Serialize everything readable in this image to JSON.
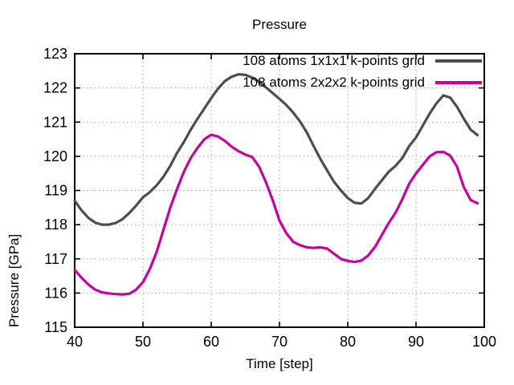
{
  "window": {
    "background": "#ffffff"
  },
  "colors": {
    "axis": "#000000",
    "grid": "#a6a6a6",
    "series1": "#4d4d4d",
    "series2": "#c4009e"
  },
  "chart_data": {
    "type": "line",
    "title": "Pressure",
    "xlabel": "Time [step]",
    "ylabel": "Pressure [GPa]",
    "xlim": [
      40,
      100
    ],
    "ylim": [
      115,
      123
    ],
    "xticks": [
      40,
      50,
      60,
      70,
      80,
      90,
      100
    ],
    "yticks": [
      115,
      116,
      117,
      118,
      119,
      120,
      121,
      122,
      123
    ],
    "grid": true,
    "grid_style": "dotted",
    "legend_position": "top-inside-right",
    "x": [
      40,
      41,
      42,
      43,
      44,
      45,
      46,
      47,
      48,
      49,
      50,
      51,
      52,
      53,
      54,
      55,
      56,
      57,
      58,
      59,
      60,
      61,
      62,
      63,
      64,
      65,
      66,
      67,
      68,
      69,
      70,
      71,
      72,
      73,
      74,
      75,
      76,
      77,
      78,
      79,
      80,
      81,
      82,
      83,
      84,
      85,
      86,
      87,
      88,
      89,
      90,
      91,
      92,
      93,
      94,
      95,
      96,
      97,
      98,
      99
    ],
    "series": [
      {
        "name": "108 atoms 1x1x1 k-points grid",
        "color": "#4d4d4d",
        "values": [
          118.7,
          118.42,
          118.2,
          118.06,
          118.0,
          118.0,
          118.05,
          118.16,
          118.34,
          118.56,
          118.8,
          118.95,
          119.15,
          119.4,
          119.72,
          120.1,
          120.42,
          120.78,
          121.1,
          121.4,
          121.7,
          121.98,
          122.2,
          122.33,
          122.4,
          122.38,
          122.3,
          122.18,
          122.02,
          121.85,
          121.68,
          121.5,
          121.28,
          121.02,
          120.7,
          120.3,
          119.92,
          119.58,
          119.25,
          119.0,
          118.78,
          118.64,
          118.62,
          118.78,
          119.05,
          119.3,
          119.55,
          119.72,
          119.95,
          120.3,
          120.55,
          120.9,
          121.25,
          121.55,
          121.78,
          121.72,
          121.45,
          121.1,
          120.78,
          120.62
        ]
      },
      {
        "name": "108 atoms 2x2x2 k-points grid",
        "color": "#c4009e",
        "values": [
          116.68,
          116.45,
          116.25,
          116.1,
          116.02,
          115.99,
          115.97,
          115.96,
          115.98,
          116.1,
          116.32,
          116.7,
          117.2,
          117.85,
          118.5,
          119.05,
          119.55,
          119.95,
          120.25,
          120.5,
          120.63,
          120.58,
          120.45,
          120.28,
          120.15,
          120.05,
          119.98,
          119.7,
          119.25,
          118.72,
          118.12,
          117.75,
          117.5,
          117.4,
          117.34,
          117.32,
          117.34,
          117.3,
          117.15,
          117.0,
          116.94,
          116.91,
          116.95,
          117.1,
          117.35,
          117.7,
          118.05,
          118.35,
          118.75,
          119.2,
          119.5,
          119.75,
          120.0,
          120.12,
          120.13,
          120.02,
          119.7,
          119.1,
          118.72,
          118.63
        ]
      }
    ]
  }
}
